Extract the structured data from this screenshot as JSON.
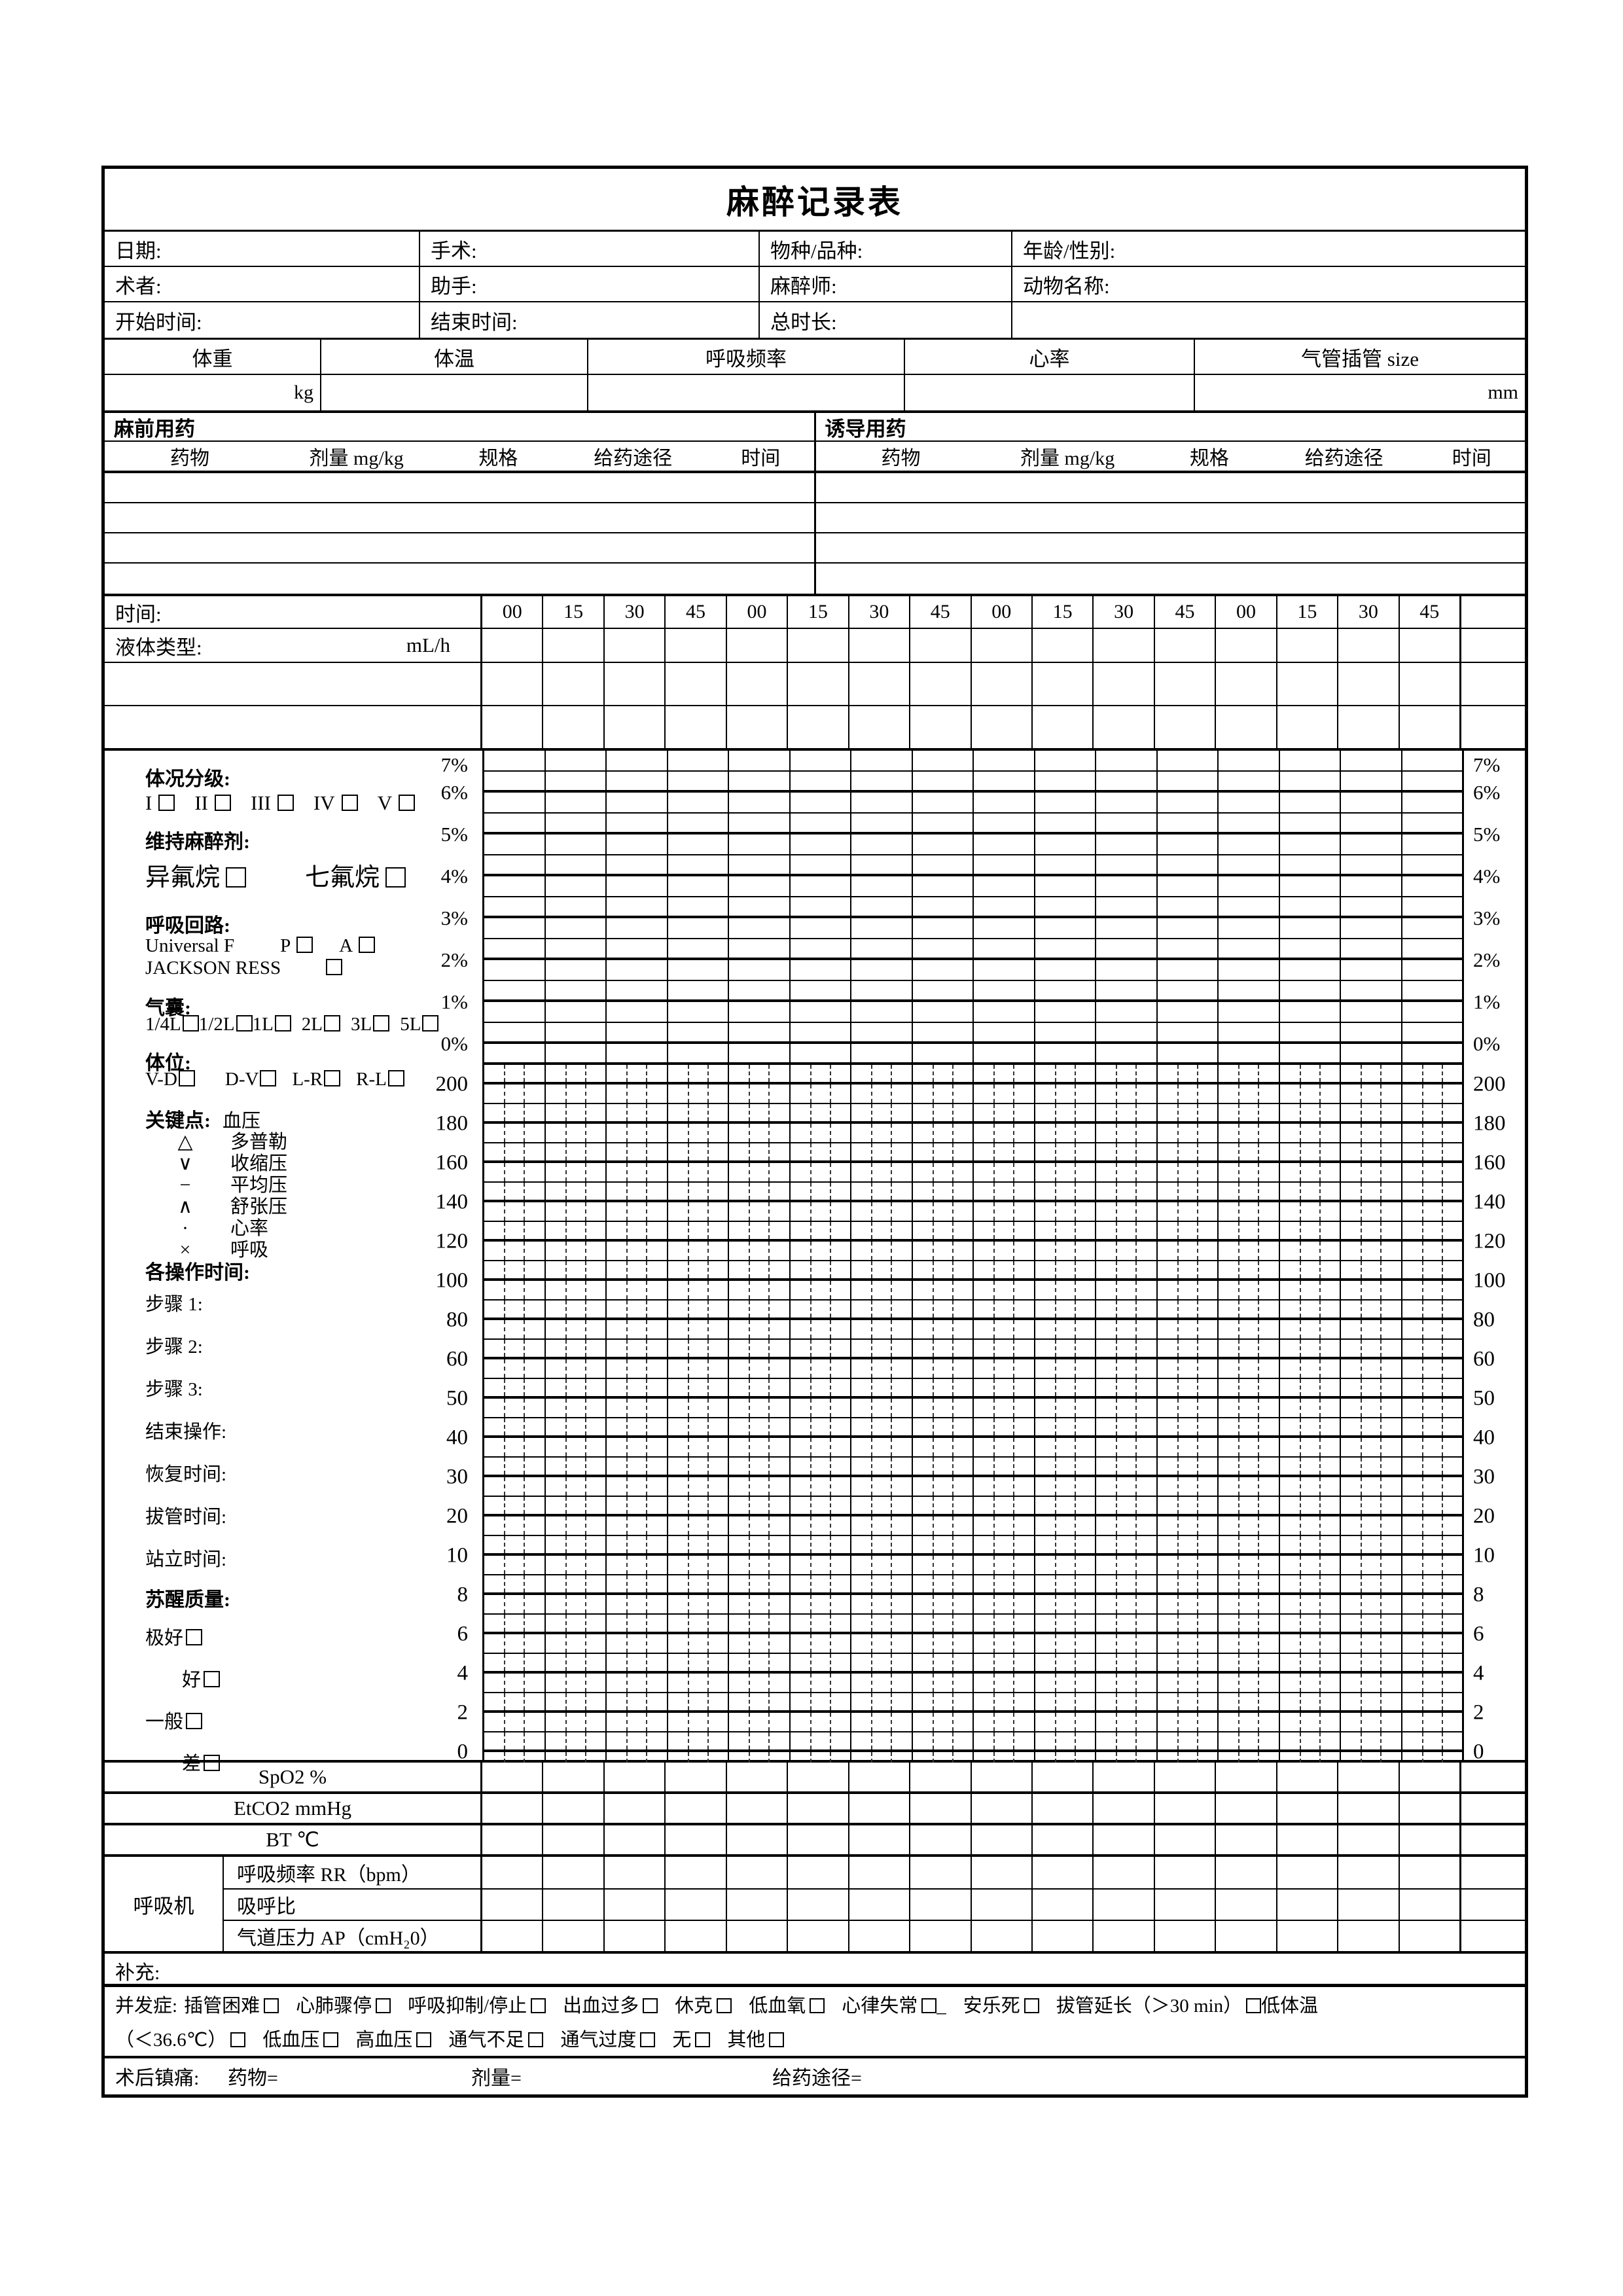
{
  "title": "麻醉记录表",
  "info": {
    "rows": [
      [
        "日期:",
        "手术:",
        "物种/品种:",
        "年龄/性别:"
      ],
      [
        "术者:",
        "助手:",
        "麻醉师:",
        "动物名称:"
      ],
      [
        "开始时间:",
        "结束时间:",
        "总时长:",
        ""
      ]
    ]
  },
  "vitals": {
    "headers": [
      "体重",
      "体温",
      "呼吸频率",
      "心率",
      "气管插管 size"
    ],
    "units": [
      "kg",
      "",
      "",
      "",
      "mm"
    ]
  },
  "medication": {
    "left_title": "麻前用药",
    "right_title": "诱导用药",
    "columns": [
      "药物",
      "剂量 mg/kg",
      "规格",
      "给药途径",
      "时间"
    ],
    "empty_rows": 4
  },
  "time_row": {
    "label": "时间:",
    "ticks": [
      "00",
      "15",
      "30",
      "45",
      "00",
      "15",
      "30",
      "45",
      "00",
      "15",
      "30",
      "45",
      "00",
      "15",
      "30",
      "45"
    ]
  },
  "fluid_row": {
    "label": "液体类型:",
    "unit": "mL/h"
  },
  "chart": {
    "pct_labels": [
      "7%",
      "6%",
      "5%",
      "4%",
      "3%",
      "2%",
      "1%",
      "0%"
    ],
    "value_labels": [
      "200",
      "180",
      "160",
      "140",
      "120",
      "100",
      "80",
      "60",
      "50",
      "40",
      "30",
      "20",
      "10",
      "8",
      "6",
      "4",
      "2",
      "0"
    ],
    "columns": 16,
    "subdivisions": 3
  },
  "panel": {
    "condition_label": "体况分级:",
    "condition_options": [
      "I",
      "II",
      "III",
      "IV",
      "V"
    ],
    "maintenance_label": "维持麻醉剂:",
    "maintenance_options": [
      "异氟烷",
      "七氟烷"
    ],
    "circuit_label": "呼吸回路:",
    "circuit_row1_name": "Universal F",
    "circuit_row1_options": [
      "P",
      "A"
    ],
    "circuit_row2_name": "JACKSON RESS",
    "bag_label": "气囊:",
    "bag_options": [
      "1/4L",
      "1/2L",
      "1L",
      "2L",
      "3L",
      "5L"
    ],
    "position_label": "体位:",
    "position_options": [
      "V-D",
      "D-V",
      "L-R",
      "R-L"
    ],
    "keypoints_label": "关键点:",
    "keypoints_sub": "血压",
    "legend": [
      {
        "symbol": "△",
        "label": "多普勒"
      },
      {
        "symbol": "∨",
        "label": "收缩压"
      },
      {
        "symbol": "−",
        "label": "平均压"
      },
      {
        "symbol": "∧",
        "label": "舒张压"
      },
      {
        "symbol": "·",
        "label": "心率"
      },
      {
        "symbol": "×",
        "label": "呼吸"
      }
    ],
    "optimes_label": "各操作时间:",
    "optimes": [
      "步骤 1:",
      "步骤 2:",
      "步骤 3:",
      "结束操作:",
      "恢复时间:",
      "拔管时间:",
      "站立时间:"
    ],
    "recovery_label": "苏醒质量:",
    "recovery_options": [
      "极好",
      "好",
      "一般",
      "差"
    ]
  },
  "monitors": [
    "SpO2 %",
    "EtCO2 mmHg",
    "BT ℃"
  ],
  "ventilator": {
    "label": "呼吸机",
    "rows": [
      "呼吸频率 RR（bpm）",
      "吸呼比",
      "气道压力 AP（cmH₂0）"
    ]
  },
  "supplement_label": "补充:",
  "complications": {
    "label": "并发症:",
    "line1": [
      {
        "text": "插管困难",
        "box": true
      },
      {
        "text": "心肺骤停",
        "box": true
      },
      {
        "text": "呼吸抑制/停止",
        "box": true
      },
      {
        "text": "出血过多",
        "box": true
      },
      {
        "text": "休克",
        "box": true
      },
      {
        "text": "低血氧",
        "box": true
      },
      {
        "text": "心律失常",
        "box": true,
        "suffix": "_"
      },
      {
        "text": "安乐死",
        "box": true
      },
      {
        "text": "拔管延长（＞30 min）",
        "box": true,
        "tight": true
      },
      {
        "text": "低体温",
        "box": false
      }
    ],
    "line2": [
      {
        "text": "（＜36.6℃）",
        "box": true
      },
      {
        "text": "低血压",
        "box": true
      },
      {
        "text": "高血压",
        "box": true
      },
      {
        "text": "通气不足",
        "box": true
      },
      {
        "text": "通气过度",
        "box": true
      },
      {
        "text": "无",
        "box": true
      },
      {
        "text": "其他",
        "box": true
      }
    ]
  },
  "analgesia": {
    "label": "术后镇痛:",
    "fields": [
      "药物=",
      "剂量=",
      "给药途径="
    ]
  }
}
